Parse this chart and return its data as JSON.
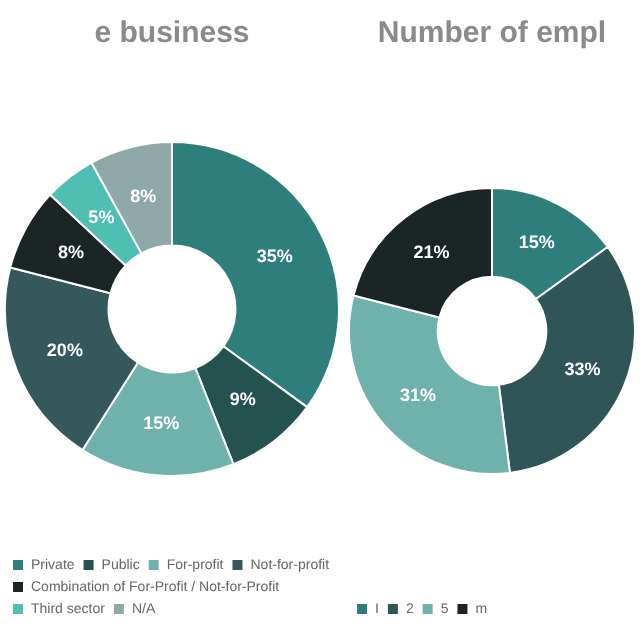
{
  "chart_data": [
    {
      "type": "donut",
      "title": "e business",
      "categories": [
        "Private",
        "Public",
        "For-profit",
        "Not-for-profit",
        "Combination of For-Profit / Not-for-Profit",
        "Third sector",
        "N/A"
      ],
      "values": [
        35,
        9,
        15,
        20,
        8,
        5,
        8
      ],
      "value_labels": [
        "35%",
        "9%",
        "15%",
        "20%",
        "8%",
        "5%",
        "8%"
      ],
      "colors": [
        "#2e7f7b",
        "#24524f",
        "#6fb2ab",
        "#35595a",
        "#1c2526",
        "#4fbfb3",
        "#8fa9a8"
      ],
      "legend": "bottom"
    },
    {
      "type": "donut",
      "title": "Number of empl",
      "categories": [
        "I",
        "2",
        "5",
        "m"
      ],
      "values": [
        15,
        33,
        31,
        21
      ],
      "value_labels": [
        "15%",
        "33%",
        "31%",
        "21%"
      ],
      "colors": [
        "#2e7f7b",
        "#2f5556",
        "#6fb2ab",
        "#1c2526"
      ],
      "legend": "bottom"
    }
  ]
}
